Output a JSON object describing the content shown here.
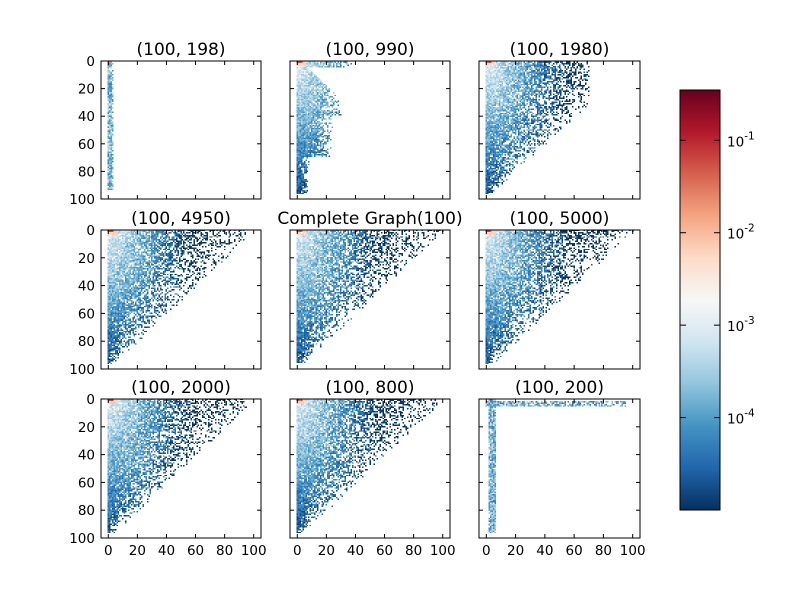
{
  "chart_data": {
    "type": "heatmap",
    "scale": "log",
    "colormap": "RdBu_r",
    "colormap_stops": [
      "#053061",
      "#2166ac",
      "#4393c3",
      "#92c5de",
      "#d1e5f0",
      "#f7f7f7",
      "#fddbc7",
      "#f4a582",
      "#d6604d",
      "#b2182b",
      "#67001f"
    ],
    "color_range": [
      1e-05,
      0.35
    ],
    "grid": false,
    "legend": "right colorbar",
    "colorbar_ticks": [
      {
        "value": 0.1,
        "base": "10",
        "exp": "-1"
      },
      {
        "value": 0.01,
        "base": "10",
        "exp": "-2"
      },
      {
        "value": 0.001,
        "base": "10",
        "exp": "-3"
      },
      {
        "value": 0.0001,
        "base": "10",
        "exp": "-4"
      }
    ],
    "x_range": [
      -5,
      105
    ],
    "y_range": [
      100,
      0
    ],
    "x_ticks": [
      "0",
      "20",
      "40",
      "60",
      "80",
      "100"
    ],
    "y_ticks": [
      "0",
      "20",
      "40",
      "60",
      "80",
      "100"
    ],
    "panels": [
      {
        "title": "(100, 198)",
        "pattern": "column",
        "max_col": 4,
        "max_row": 93
      },
      {
        "title": "(100, 990)",
        "pattern": "narrow",
        "max_col": 40,
        "max_row": 96
      },
      {
        "title": "(100, 1980)",
        "pattern": "triangle",
        "max_col": 70,
        "max_row": 96
      },
      {
        "title": "(100, 4950)",
        "pattern": "triangle",
        "max_col": 95,
        "max_row": 96
      },
      {
        "title": "Complete Graph(100)",
        "pattern": "triangle",
        "max_col": 100,
        "max_row": 95
      },
      {
        "title": "(100, 5000)",
        "pattern": "triangle",
        "max_col": 100,
        "max_row": 96
      },
      {
        "title": "(100, 2000)",
        "pattern": "triangle",
        "max_col": 95,
        "max_row": 96
      },
      {
        "title": "(100, 800)",
        "pattern": "triangle",
        "max_col": 100,
        "max_row": 96
      },
      {
        "title": "(100, 200)",
        "pattern": "L-shape",
        "max_col": 95,
        "max_row": 96
      }
    ]
  }
}
